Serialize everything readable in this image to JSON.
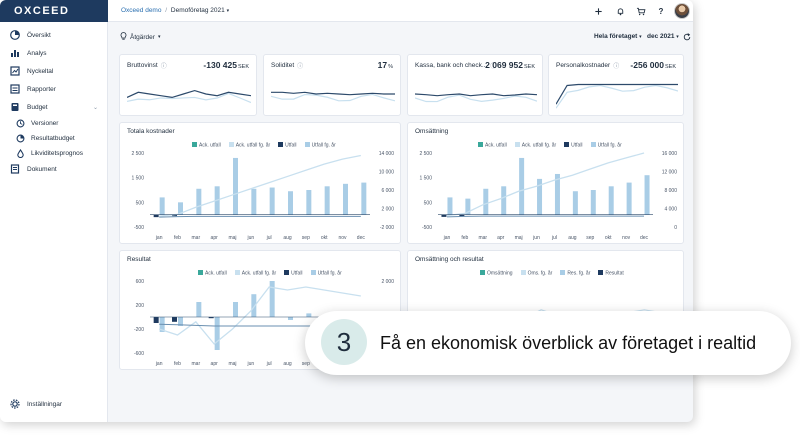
{
  "app": {
    "logo": "OXCEED"
  },
  "sidebar": {
    "items": [
      {
        "label": "Översikt",
        "icon": "overview-icon"
      },
      {
        "label": "Analys",
        "icon": "analysis-icon"
      },
      {
        "label": "Nyckeltal",
        "icon": "keyfigures-icon"
      },
      {
        "label": "Rapporter",
        "icon": "reports-icon"
      },
      {
        "label": "Budget",
        "icon": "budget-icon"
      },
      {
        "label": "Versioner",
        "icon": "versions-icon"
      },
      {
        "label": "Resultatbudget",
        "icon": "resultbudget-icon"
      },
      {
        "label": "Likviditetsprognos",
        "icon": "liquidity-icon"
      },
      {
        "label": "Dokument",
        "icon": "document-icon"
      }
    ],
    "settings": "Inställningar"
  },
  "topbar": {
    "breadcrumb_root": "Oxceed demo",
    "breadcrumb_sep": "/",
    "breadcrumb_company": "Demoföretag 2021"
  },
  "toolbar": {
    "actions": "Åtgärder",
    "scope": "Hela företaget",
    "period": "dec 2021"
  },
  "kpis": [
    {
      "title": "Bruttovinst",
      "value": "-130 425",
      "unit": "SEK"
    },
    {
      "title": "Soliditet",
      "value": "17",
      "unit": "%"
    },
    {
      "title": "Kassa, bank och check...",
      "value": "2 069 952",
      "unit": "SEK"
    },
    {
      "title": "Personalkostnader",
      "value": "-256 000",
      "unit": "SEK"
    }
  ],
  "colors": {
    "accent": "#1e3a5f",
    "ack_utfall": "#3aa89b",
    "ack_utfall_fg": "#c8e0ef",
    "utfall": "#1e3a5f",
    "utfall_fg": "#a9cde6",
    "omsattning": "#3aa89b",
    "oms_fg": "#c8e0ef",
    "res_fg": "#a9cde6",
    "resultat": "#1e3a5f"
  },
  "charts_text": {
    "months": [
      "jan",
      "feb",
      "mar",
      "apr",
      "maj",
      "jun",
      "jul",
      "aug",
      "sep",
      "okt",
      "nov",
      "dec"
    ],
    "legend_standard": [
      "Ack. utfall",
      "Ack. utfall fg. år",
      "Utfall",
      "Utfall fg. år"
    ],
    "legend_om_res": [
      "Omsättning",
      "Oms. fg. år",
      "Res. fg. år",
      "Resultat"
    ]
  },
  "chart_data": [
    {
      "type": "bar",
      "title": "Totala kostnader",
      "categories": [
        "jan",
        "feb",
        "mar",
        "apr",
        "maj",
        "jun",
        "jul",
        "aug",
        "sep",
        "okt",
        "nov",
        "dec"
      ],
      "y_ticks": [
        "2 500",
        "1 500",
        "500",
        "-500"
      ],
      "y2_ticks": [
        "14 000",
        "10 000",
        "6 000",
        "2 000",
        "-2 000"
      ],
      "ylim": [
        -500,
        2500
      ],
      "series": [
        {
          "name": "Utfall fg. år",
          "values": [
            700,
            500,
            1050,
            1150,
            2300,
            1050,
            1100,
            950,
            1000,
            1150,
            1250,
            1300
          ]
        },
        {
          "name": "Utfall",
          "values": [
            -100,
            -60,
            0,
            0,
            0,
            0,
            0,
            0,
            0,
            0,
            0,
            0
          ]
        },
        {
          "name": "Ack. utfall fg. år",
          "values": [
            -60,
            10,
            300,
            550,
            800,
            1050,
            1300,
            1550,
            1800,
            2050,
            2250,
            2400
          ]
        },
        {
          "name": "Ack. utfall",
          "values": [
            -100,
            -80,
            -70,
            -70,
            -70,
            -70,
            -70,
            -70,
            -70,
            -70,
            -70,
            -70
          ]
        }
      ]
    },
    {
      "type": "bar",
      "title": "Omsättning",
      "categories": [
        "jan",
        "feb",
        "mar",
        "apr",
        "maj",
        "jun",
        "jul",
        "aug",
        "sep",
        "okt",
        "nov",
        "dec"
      ],
      "y_ticks": [
        "2 500",
        "1 500",
        "500",
        "-500"
      ],
      "y2_ticks": [
        "16 000",
        "12 000",
        "8 000",
        "4 000",
        "0"
      ],
      "ylim": [
        -500,
        2500
      ],
      "series": [
        {
          "name": "Utfall fg. år",
          "values": [
            700,
            650,
            1050,
            1150,
            2300,
            1450,
            1650,
            950,
            1000,
            1150,
            1300,
            1600
          ]
        },
        {
          "name": "Utfall",
          "values": [
            -90,
            -60,
            0,
            0,
            0,
            0,
            0,
            0,
            0,
            0,
            0,
            0
          ]
        },
        {
          "name": "Ack. utfall fg. år",
          "values": [
            -40,
            50,
            400,
            650,
            950,
            1150,
            1400,
            1600,
            1850,
            2100,
            2300,
            2500
          ]
        },
        {
          "name": "Ack. utfall",
          "values": [
            -90,
            -70,
            -60,
            -60,
            -60,
            -60,
            -60,
            -60,
            -60,
            -60,
            -60,
            -60
          ]
        }
      ]
    },
    {
      "type": "bar",
      "title": "Resultat",
      "categories": [
        "jan",
        "feb",
        "mar",
        "apr",
        "maj",
        "jun",
        "jul",
        "aug",
        "sep",
        "okt",
        "nov",
        "dec"
      ],
      "y_ticks": [
        "600",
        "200",
        "-200",
        "-600"
      ],
      "y2_ticks": [
        "2 000",
        "1 500",
        "1 000"
      ],
      "ylim": [
        -600,
        600
      ],
      "series": [
        {
          "name": "Utfall fg. år",
          "values": [
            -250,
            -150,
            250,
            -550,
            250,
            380,
            600,
            -50,
            60,
            0,
            0,
            0
          ]
        },
        {
          "name": "Utfall",
          "values": [
            -100,
            -80,
            0,
            -20,
            0,
            0,
            0,
            0,
            0,
            0,
            0,
            0
          ]
        },
        {
          "name": "Ack. utfall fg. år",
          "values": [
            -200,
            -300,
            -80,
            -450,
            -200,
            100,
            500,
            450,
            500,
            450,
            400,
            350
          ]
        },
        {
          "name": "Ack. utfall",
          "values": [
            -120,
            -130,
            -140,
            -150,
            -150,
            -150,
            -150,
            -150,
            -150,
            -150,
            -150,
            -150
          ]
        }
      ]
    },
    {
      "type": "line",
      "title": "Omsättning och resultat",
      "series": [
        {
          "name": "Oms. fg. år",
          "values": [
            0.3,
            0.35,
            0.4,
            0.3,
            0.45,
            0.6,
            0.5,
            0.4,
            0.45,
            0.55,
            0.6,
            0.55
          ]
        },
        {
          "name": "Res. fg. år",
          "values": [
            0.2,
            0.15,
            0.25,
            0.2,
            0.3,
            0.35,
            0.3,
            0.25,
            0.3,
            0.3,
            0.35,
            0.3
          ]
        }
      ]
    }
  ],
  "kpi_sparklines": [
    [
      0.4,
      0.55,
      0.5,
      0.45,
      0.4,
      0.5,
      0.6,
      0.5,
      0.45,
      0.55,
      0.5,
      0.45
    ],
    [
      0.55,
      0.55,
      0.52,
      0.55,
      0.5,
      0.52,
      0.5,
      0.48,
      0.5,
      0.52,
      0.5,
      0.5
    ],
    [
      0.5,
      0.48,
      0.45,
      0.48,
      0.5,
      0.45,
      0.48,
      0.5,
      0.45,
      0.47,
      0.5,
      0.48
    ],
    [
      0.2,
      0.75,
      0.78,
      0.78,
      0.78,
      0.78,
      0.78,
      0.78,
      0.78,
      0.78,
      0.78,
      0.78
    ]
  ],
  "callout": {
    "number": "3",
    "text": "Få en ekonomisk överblick av företaget i realtid"
  }
}
